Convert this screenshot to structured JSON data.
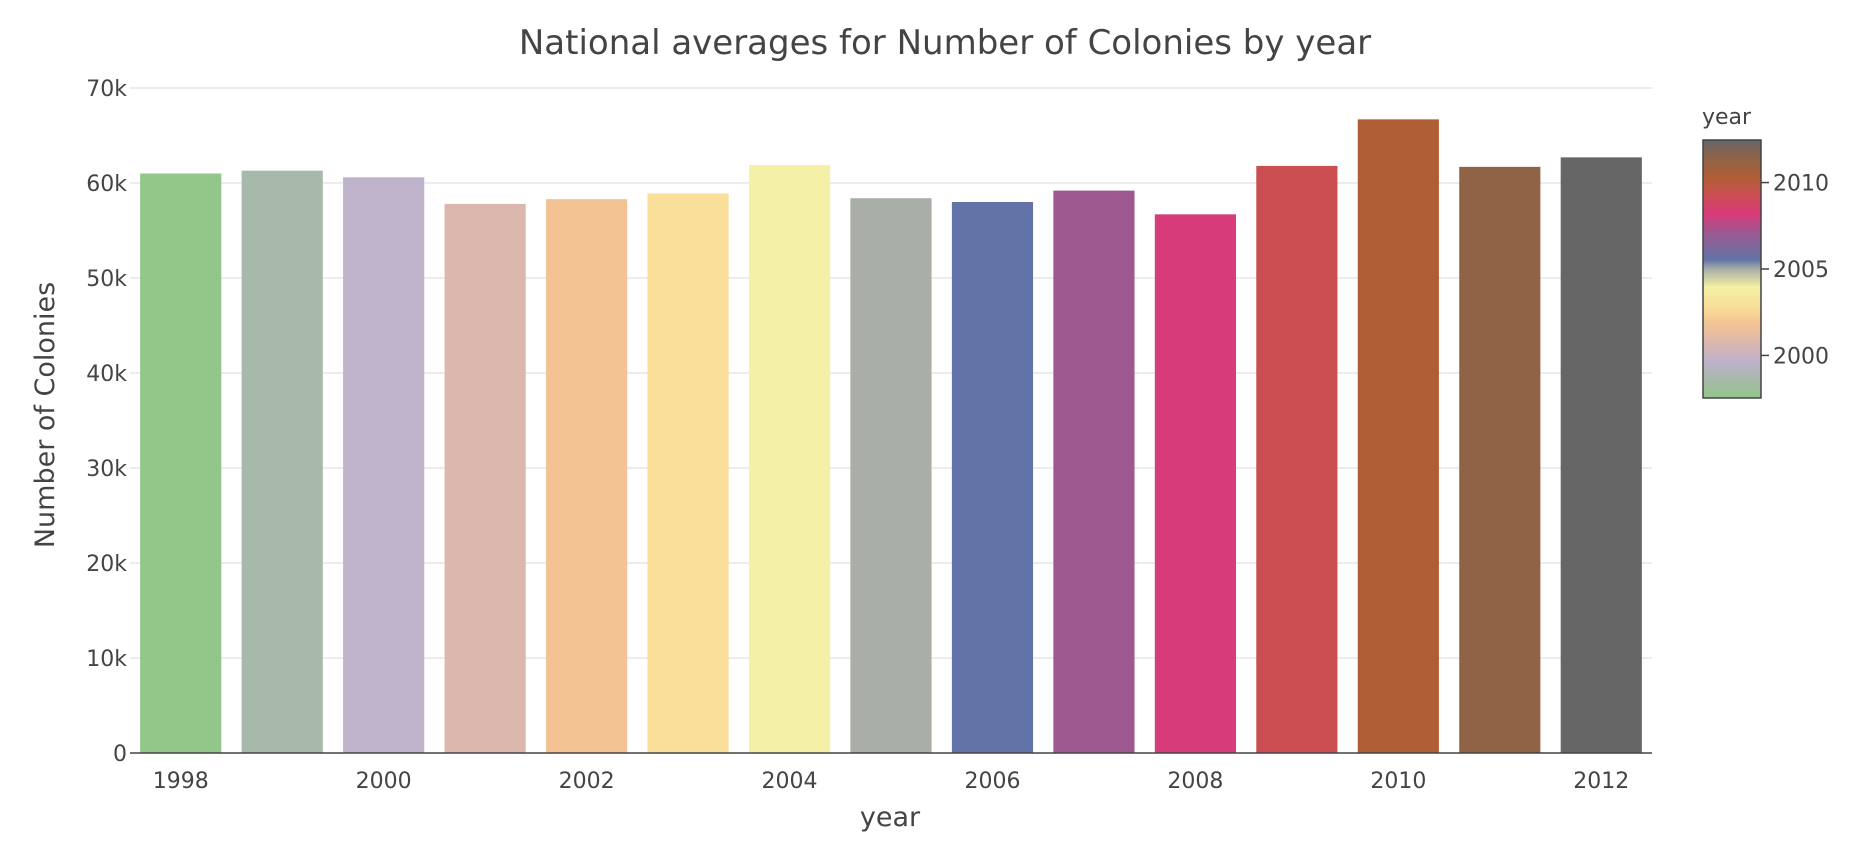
{
  "chart_data": {
    "type": "bar",
    "title": "National averages for Number of Colonies by year",
    "xlabel": "year",
    "ylabel": "Number of Colonies",
    "categories": [
      1998,
      1999,
      2000,
      2001,
      2002,
      2003,
      2004,
      2005,
      2006,
      2007,
      2008,
      2009,
      2010,
      2011,
      2012
    ],
    "values": [
      61000,
      61300,
      60600,
      57800,
      58300,
      58900,
      61900,
      58400,
      58000,
      59200,
      56700,
      61800,
      66700,
      61700,
      62700
    ],
    "bar_colors": [
      "#93c689",
      "#a7b9aa",
      "#bfb2cb",
      "#dcb7ad",
      "#f3c393",
      "#f9df99",
      "#f4f0a5",
      "#a9aea6",
      "#6173a6",
      "#9e5890",
      "#d83b7a",
      "#cb4f52",
      "#af5e35",
      "#906346",
      "#666666"
    ],
    "ylim": [
      0,
      70000
    ],
    "yticks": [
      0,
      10000,
      20000,
      30000,
      40000,
      50000,
      60000,
      70000
    ],
    "ytick_labels": [
      "0",
      "10k",
      "20k",
      "30k",
      "40k",
      "50k",
      "60k",
      "70k"
    ],
    "xticks": [
      1998,
      2000,
      2002,
      2004,
      2006,
      2008,
      2010,
      2012
    ],
    "xtick_labels": [
      "1998",
      "2000",
      "2002",
      "2004",
      "2006",
      "2008",
      "2010",
      "2012"
    ],
    "grid": true,
    "legend": "right",
    "colorbar": {
      "title": "year",
      "range": [
        1998,
        2012
      ],
      "ticks": [
        2000,
        2005,
        2010
      ],
      "tick_labels": [
        "2000",
        "2005",
        "2010"
      ],
      "stops": [
        {
          "value": 1998,
          "color": "#93c689"
        },
        {
          "value": 1999,
          "color": "#a7b9aa"
        },
        {
          "value": 2000,
          "color": "#bfb2cb"
        },
        {
          "value": 2001,
          "color": "#dcb7ad"
        },
        {
          "value": 2002,
          "color": "#f3c393"
        },
        {
          "value": 2003,
          "color": "#f9df99"
        },
        {
          "value": 2004,
          "color": "#f4f0a5"
        },
        {
          "value": 2005,
          "color": "#a9aea6"
        },
        {
          "value": 2005.5,
          "color": "#6173a6"
        },
        {
          "value": 2007,
          "color": "#9e5890"
        },
        {
          "value": 2008,
          "color": "#d83b7a"
        },
        {
          "value": 2009,
          "color": "#cb4f52"
        },
        {
          "value": 2010,
          "color": "#af5e35"
        },
        {
          "value": 2011,
          "color": "#906346"
        },
        {
          "value": 2012,
          "color": "#666666"
        }
      ]
    }
  }
}
